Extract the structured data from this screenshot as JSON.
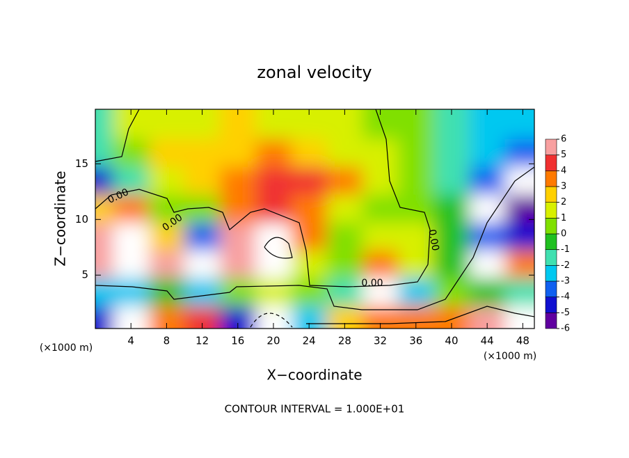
{
  "chart_data": {
    "type": "contour",
    "title": "zonal velocity",
    "xlabel": "X−coordinate",
    "ylabel": "Z−coordinate",
    "x_unit_label": "(×1000 m)",
    "footer": "CONTOUR INTERVAL = 1.000E+01",
    "contour_labels": [
      "0.00",
      "0.00",
      "0.00",
      "0.00"
    ],
    "xlim": [
      0,
      49.3
    ],
    "ylim": [
      0.2,
      19.9
    ],
    "xticks": [
      4,
      8,
      12,
      16,
      20,
      24,
      28,
      32,
      36,
      40,
      44,
      48
    ],
    "yticks": [
      5,
      10,
      15
    ],
    "colorbar": {
      "lim": [
        -6,
        6
      ],
      "ticks": [
        -6,
        -5,
        -4,
        -3,
        -2,
        -1,
        0,
        1,
        2,
        3,
        4,
        5,
        6
      ],
      "colors": [
        "#6000a0",
        "#1010d0",
        "#1060f0",
        "#00c8f0",
        "#40e0b0",
        "#20c020",
        "#80e000",
        "#d8f000",
        "#ffd000",
        "#ff7a00",
        "#f03030",
        "#f8a0a0"
      ]
    },
    "field": {
      "x": [
        0,
        4,
        8,
        12,
        16,
        20,
        24,
        28,
        32,
        36,
        40,
        44,
        48
      ],
      "z": [
        1,
        3.5,
        6,
        8.5,
        11,
        13.5,
        16,
        18.5
      ],
      "values": [
        [
          -5,
          -8,
          3,
          4,
          -5,
          -9,
          -3,
          2,
          3,
          3,
          3,
          5,
          8
        ],
        [
          -3,
          -3,
          -1,
          -3,
          0,
          1,
          0,
          -2,
          -7,
          -3,
          0,
          -1,
          -2
        ],
        [
          6,
          9,
          5,
          -8,
          6,
          9,
          1,
          0.5,
          3,
          1.5,
          -1,
          -8,
          3
        ],
        [
          5,
          8,
          2,
          -4,
          5,
          8,
          3,
          0.5,
          1,
          1,
          -1,
          -4,
          -5
        ],
        [
          2,
          3,
          0.5,
          0,
          3,
          4,
          3,
          1.5,
          0.5,
          0,
          -1,
          -7,
          -6
        ],
        [
          -5,
          -2,
          1.5,
          2,
          3,
          4.5,
          4,
          3,
          1.5,
          0.5,
          -1.5,
          -4,
          -8
        ],
        [
          -2,
          0,
          2,
          2.5,
          2.5,
          3,
          2,
          1.5,
          1,
          0.5,
          -2,
          -3,
          -4
        ],
        [
          -2,
          1,
          1.5,
          1.5,
          2,
          1.5,
          1,
          1,
          0.5,
          0.5,
          -2,
          -2.5,
          -2.5
        ]
      ]
    }
  }
}
